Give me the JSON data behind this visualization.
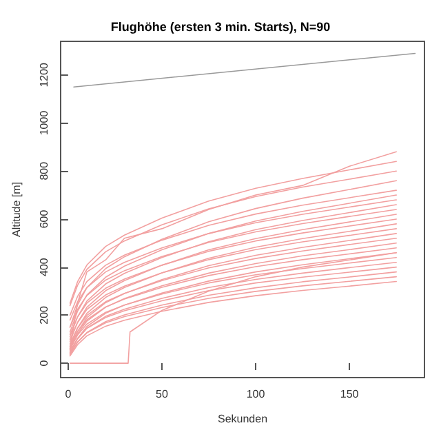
{
  "chart_data": {
    "type": "line",
    "title": "Flughöhe (ersten 3 min. Starts), N=90",
    "xlabel": "Sekunden",
    "ylabel": "Altitude [m]",
    "x": [
      1,
      5,
      10,
      20,
      30,
      50,
      75,
      100,
      125,
      150,
      175
    ],
    "xlim": [
      -4,
      190
    ],
    "xticks": [
      0,
      50,
      100,
      150
    ],
    "ylim": [
      -60,
      1340
    ],
    "yticks": [
      0,
      200,
      400,
      600,
      800,
      1000,
      1200
    ],
    "marker": "none",
    "line_style": "solid",
    "series": [
      {
        "color": "#f2a0a0",
        "values": [
          30,
          77,
          114,
          154,
          179,
          216,
          253,
          281,
          303,
          321,
          340
        ]
      },
      {
        "color": "#f2a0a0",
        "values": [
          40,
          88,
          126,
          168,
          194,
          232,
          270,
          299,
          322,
          341,
          360
        ]
      },
      {
        "color": "#f2a0a0",
        "values": [
          35,
          87,
          128,
          173,
          201,
          242,
          283,
          314,
          339,
          359,
          380
        ]
      },
      {
        "color": "#f2a0a0",
        "values": [
          50,
          103,
          145,
          190,
          218,
          260,
          302,
          334,
          358,
          379,
          400
        ]
      },
      {
        "color": "#f2a0a0",
        "values": [
          45,
          101,
          146,
          195,
          225,
          270,
          315,
          349,
          375,
          398,
          420
        ]
      },
      {
        "color": "#f2a0a0",
        "values": [
          60,
          117,
          163,
          212,
          242,
          288,
          334,
          368,
          394,
          417,
          440
        ]
      },
      {
        "color": "#f2a0a0",
        "values": [
          40,
          103,
          153,
          208,
          242,
          292,
          342,
          380,
          410,
          435,
          460
        ]
      },
      {
        "color": "#f2a0a0",
        "values": [
          70,
          132,
          181,
          234,
          267,
          316,
          365,
          402,
          431,
          455,
          480
        ]
      },
      {
        "color": "#f2a0a0",
        "values": [
          55,
          122,
          175,
          233,
          269,
          322,
          375,
          415,
          447,
          473,
          500
        ]
      },
      {
        "color": "#f2a0a0",
        "values": [
          80,
          146,
          199,
          256,
          291,
          344,
          397,
          436,
          467,
          494,
          520
        ]
      },
      {
        "color": "#f2a0a0",
        "values": [
          60,
          132,
          190,
          252,
          290,
          348,
          406,
          449,
          482,
          511,
          540
        ]
      },
      {
        "color": "#f2a0a0",
        "values": [
          100,
          169,
          224,
          284,
          321,
          376,
          431,
          473,
          505,
          532,
          560
        ]
      },
      {
        "color": "#f2a0a0",
        "values": [
          70,
          147,
          208,
          274,
          315,
          376,
          437,
          483,
          519,
          549,
          580
        ]
      },
      {
        "color": "#f2a0a0",
        "values": [
          120,
          192,
          250,
          312,
          350,
          408,
          466,
          509,
          542,
          571,
          600
        ]
      },
      {
        "color": "#f2a0a0",
        "values": [
          90,
          170,
          233,
          302,
          344,
          408,
          472,
          519,
          556,
          588,
          620
        ]
      },
      {
        "color": "#f2a0a0",
        "values": [
          150,
          224,
          282,
          346,
          385,
          444,
          503,
          547,
          581,
          611,
          640
        ]
      },
      {
        "color": "#f2a0a0",
        "values": [
          110,
          193,
          259,
          330,
          374,
          440,
          506,
          556,
          594,
          627,
          660
        ]
      },
      {
        "color": "#f2a0a0",
        "values": [
          180,
          255,
          315,
          380,
          420,
          480,
          540,
          585,
          620,
          650,
          680
        ]
      },
      {
        "color": "#f2a0a0",
        "values": [
          130,
          216,
          284,
          358,
          404,
          472,
          540,
          592,
          632,
          666,
          700
        ]
      },
      {
        "color": "#f2a0a0",
        "values": [
          200,
          278,
          340,
          408,
          450,
          512,
          574,
          621,
          658,
          689,
          720
        ]
      },
      {
        "color": "#f2a0a0",
        "values": [
          150,
          242,
          315,
          394,
          443,
          516,
          589,
          644,
          687,
          723,
          760
        ]
      },
      {
        "color": "#f2a0a0",
        "values": [
          240,
          324,
          391,
          464,
          509,
          576,
          643,
          694,
          733,
          766,
          800
        ]
      },
      {
        "color": "#f2a0a0",
        "values": [
          250,
          339,
          409,
          486,
          533,
          604,
          675,
          728,
          769,
          805,
          840
        ]
      },
      {
        "color": "#f2a0a0",
        "values": [
          60,
          250,
          380,
          430,
          520,
          560,
          640,
          700,
          740,
          820,
          880
        ]
      },
      {
        "color": "#f2a0a0",
        "x": [
          1,
          32,
          33,
          50,
          75,
          100,
          125,
          150,
          175
        ],
        "values": [
          0,
          0,
          130,
          220,
          300,
          360,
          400,
          430,
          460
        ]
      },
      {
        "color": "#999999",
        "x": [
          3,
          185
        ],
        "values": [
          1150,
          1290
        ]
      }
    ]
  }
}
